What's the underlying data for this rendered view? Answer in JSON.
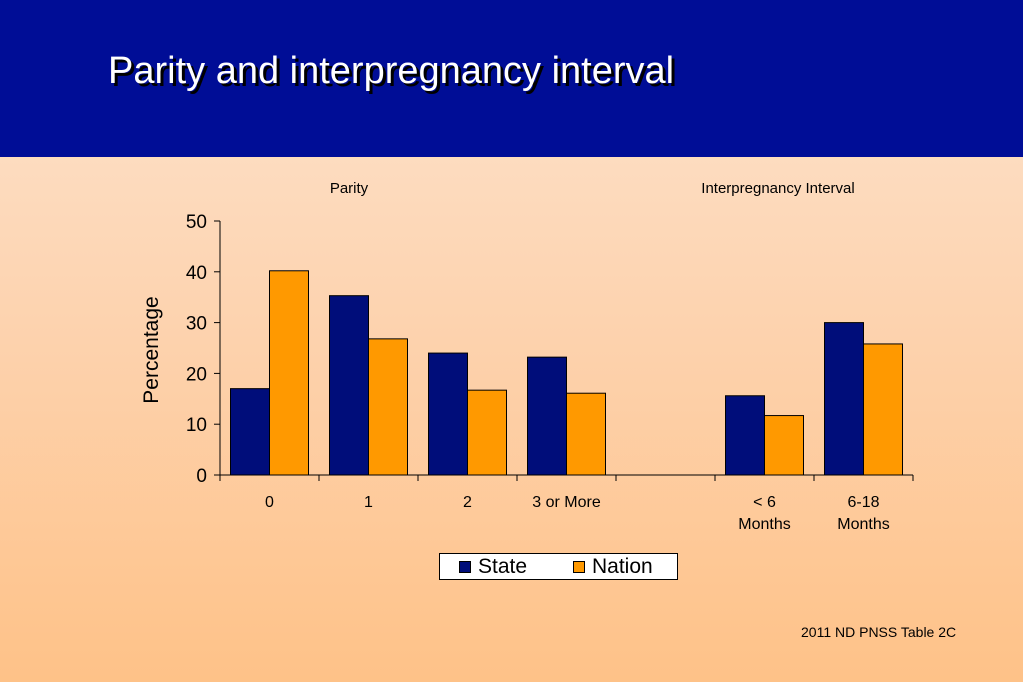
{
  "slide": {
    "title": "Parity and interpregnancy interval",
    "source": "2011 ND PNSS Table 2C"
  },
  "chart_data": {
    "type": "bar",
    "group_labels": [
      "Parity",
      "Interpregnancy Interval"
    ],
    "categories": [
      "0",
      "1",
      "2",
      "3 or More",
      "",
      "< 6\nMonths",
      "6-18\nMonths"
    ],
    "series": [
      {
        "name": "State",
        "values": [
          17,
          35.3,
          24,
          23.2,
          null,
          15.6,
          30
        ],
        "color": "#000d7a"
      },
      {
        "name": "Nation",
        "values": [
          40.2,
          26.8,
          16.7,
          16.1,
          null,
          11.7,
          25.8
        ],
        "color": "#ff9900"
      }
    ],
    "ylabel": "Percentage",
    "xlabel": "",
    "ylim": [
      0,
      50
    ],
    "yticks": [
      "0",
      "10",
      "20",
      "30",
      "40",
      "50"
    ],
    "grid": false,
    "legend_position": "bottom"
  },
  "colors": {
    "header": "#000d96",
    "state": "#000d7a",
    "nation": "#ff9900"
  }
}
